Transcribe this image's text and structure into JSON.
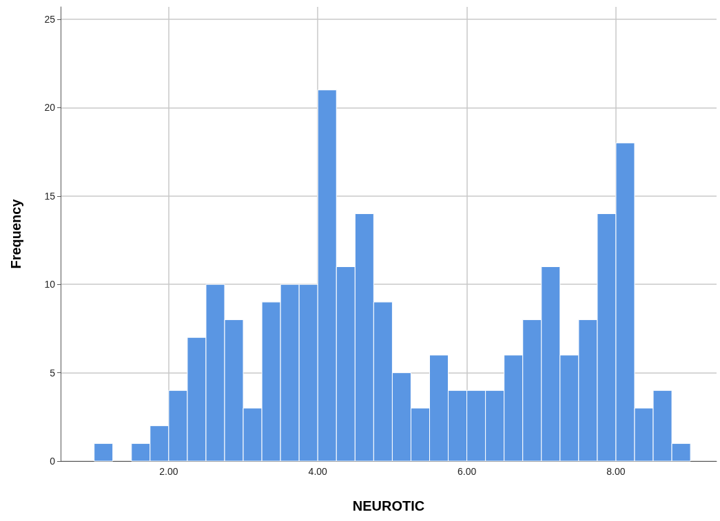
{
  "chart_data": {
    "type": "histogram",
    "xlabel": "NEUROTIC",
    "ylabel": "Frequency",
    "bins": [
      1,
      1.25,
      1.5,
      1.75,
      2,
      2.25,
      2.5,
      2.75,
      3,
      3.25,
      3.5,
      3.75,
      4,
      4.25,
      4.5,
      4.75,
      5,
      5.25,
      5.5,
      5.75,
      6,
      6.25,
      6.5,
      6.75,
      7,
      7.25,
      7.5,
      7.75,
      8,
      8.25,
      8.5,
      8.75,
      9
    ],
    "values": [
      1,
      0,
      1,
      2,
      4,
      7,
      10,
      8,
      3,
      9,
      10,
      10,
      21,
      11,
      14,
      9,
      5,
      3,
      6,
      4,
      4,
      4,
      6,
      8,
      11,
      6,
      8,
      14,
      18,
      3,
      4,
      1
    ],
    "color": "#5a96e3",
    "xlim": [
      0.55,
      9.35
    ],
    "xticks": [
      {
        "value": 2,
        "label": "2.00"
      },
      {
        "value": 4,
        "label": "4.00"
      },
      {
        "value": 6,
        "label": "6.00"
      },
      {
        "value": 8,
        "label": "8.00"
      }
    ],
    "ylim": [
      0,
      25.7
    ],
    "yticks": [
      0,
      5,
      10,
      15,
      20,
      25
    ],
    "grid": true
  }
}
